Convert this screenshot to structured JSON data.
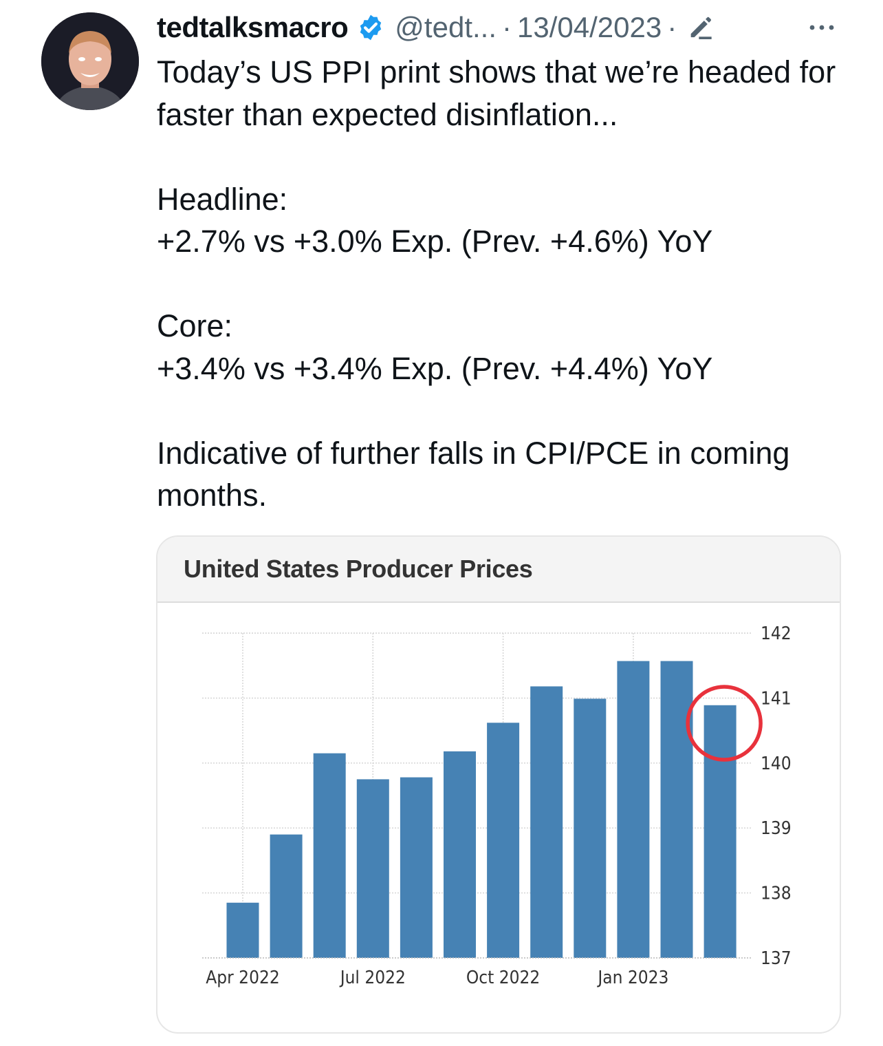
{
  "author": {
    "display_name": "tedtalksmacro",
    "handle": "@tedt...",
    "timestamp": "13/04/2023",
    "separator": "·",
    "verified_color": "#1d9bf0"
  },
  "tweet": {
    "line1": "Today’s US PPI print shows that we’re headed for faster than expected disinflation...",
    "headline_label": "Headline:",
    "headline_value": "+2.7% vs +3.0% Exp. (Prev. +4.6%) YoY",
    "core_label": "Core:",
    "core_value": "+3.4% vs +3.4% Exp. (Prev. +4.4%) YoY",
    "closing": "Indicative of further falls in CPI/PCE in coming months."
  },
  "icons": {
    "verified": "verified-badge-icon",
    "edit": "edit-pencil-icon",
    "more": "more-options-icon"
  },
  "chart_data": {
    "type": "bar",
    "title": "United States Producer Prices",
    "categories": [
      "Apr 2022",
      "May 2022",
      "Jun 2022",
      "Jul 2022",
      "Aug 2022",
      "Sep 2022",
      "Oct 2022",
      "Nov 2022",
      "Dec 2022",
      "Jan 2023",
      "Feb 2023",
      "Mar 2023"
    ],
    "values": [
      137.85,
      138.9,
      140.15,
      139.75,
      139.78,
      140.18,
      140.62,
      141.18,
      140.99,
      141.57,
      141.57,
      140.89
    ],
    "x_tick_labels": [
      "Apr 2022",
      "Jul 2022",
      "Oct 2022",
      "Jan 2023"
    ],
    "y_ticks": [
      137,
      138,
      139,
      140,
      141,
      142
    ],
    "ylim": [
      137,
      142
    ],
    "y_axis_side": "right",
    "grid": true,
    "bar_color": "#4682b4",
    "highlight": {
      "category": "Mar 2023",
      "shape": "circle",
      "color": "#e8323c"
    }
  }
}
